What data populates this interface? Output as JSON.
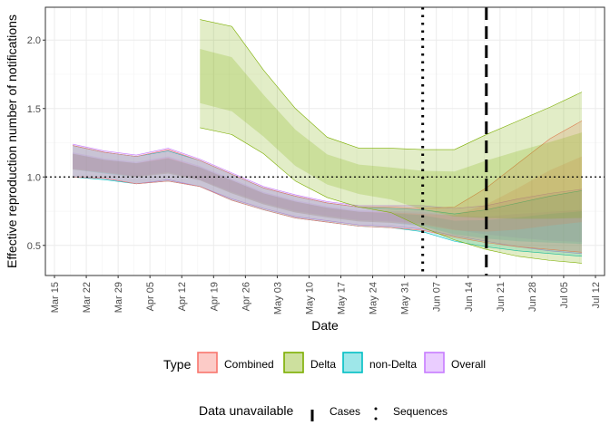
{
  "chart_data": {
    "type": "area",
    "xlabel": "Date",
    "ylabel": "Effective reproduction number of notifications",
    "y_ticks": [
      0.5,
      1.0,
      1.5,
      2.0
    ],
    "y_tick_labels": [
      "0.5",
      "1.0",
      "1.5",
      "2.0"
    ],
    "ylim": [
      0.28,
      2.24
    ],
    "xlim": [
      "2021-03-13",
      "2021-07-14"
    ],
    "x_ticks": [
      "2021-03-15",
      "2021-03-22",
      "2021-03-29",
      "2021-04-05",
      "2021-04-12",
      "2021-04-19",
      "2021-04-26",
      "2021-05-03",
      "2021-05-10",
      "2021-05-17",
      "2021-05-24",
      "2021-05-31",
      "2021-06-07",
      "2021-06-14",
      "2021-06-21",
      "2021-06-28",
      "2021-07-05",
      "2021-07-12"
    ],
    "x_tick_labels": [
      "Mar 15",
      "Mar 22",
      "Mar 29",
      "Apr 05",
      "Apr 12",
      "Apr 19",
      "Apr 26",
      "May 03",
      "May 10",
      "May 17",
      "May 24",
      "May 31",
      "Jun 07",
      "Jun 14",
      "Jun 21",
      "Jun 28",
      "Jul 05",
      "Jul 12"
    ],
    "grid": true,
    "reference_line_y": 1.0,
    "series": [
      {
        "name": "Overall",
        "color": "#C77CFF",
        "x": [
          "2021-03-19",
          "2021-03-26",
          "2021-04-02",
          "2021-04-09",
          "2021-04-16",
          "2021-04-23",
          "2021-04-30",
          "2021-05-07",
          "2021-05-14",
          "2021-05-21",
          "2021-05-28",
          "2021-06-04",
          "2021-06-11",
          "2021-06-18",
          "2021-06-25",
          "2021-07-02",
          "2021-07-09"
        ],
        "upper": [
          1.24,
          1.19,
          1.16,
          1.21,
          1.13,
          1.03,
          0.93,
          0.87,
          0.82,
          0.79,
          0.79,
          0.79,
          0.77,
          0.79,
          0.84,
          0.88,
          0.91
        ],
        "lower": [
          1.0,
          0.99,
          0.95,
          0.98,
          0.93,
          0.84,
          0.77,
          0.71,
          0.68,
          0.65,
          0.64,
          0.62,
          0.57,
          0.53,
          0.49,
          0.46,
          0.44
        ],
        "median": [
          1.12,
          1.08,
          1.06,
          1.09,
          1.03,
          0.94,
          0.85,
          0.79,
          0.75,
          0.72,
          0.71,
          0.7,
          0.66,
          0.63,
          0.62,
          0.61,
          0.61
        ]
      },
      {
        "name": "non-Delta",
        "color": "#00BFC4",
        "x": [
          "2021-03-19",
          "2021-03-26",
          "2021-04-02",
          "2021-04-09",
          "2021-04-16",
          "2021-04-23",
          "2021-04-30",
          "2021-05-07",
          "2021-05-14",
          "2021-05-21",
          "2021-05-28",
          "2021-06-04",
          "2021-06-11",
          "2021-06-18",
          "2021-06-25",
          "2021-07-02",
          "2021-07-09"
        ],
        "upper": [
          1.23,
          1.18,
          1.15,
          1.19,
          1.12,
          1.02,
          0.92,
          0.86,
          0.81,
          0.78,
          0.77,
          0.76,
          0.73,
          0.76,
          0.81,
          0.86,
          0.9
        ],
        "lower": [
          1.0,
          0.98,
          0.95,
          0.97,
          0.93,
          0.83,
          0.76,
          0.7,
          0.67,
          0.64,
          0.63,
          0.6,
          0.53,
          0.49,
          0.46,
          0.44,
          0.42
        ],
        "median": [
          1.11,
          1.07,
          1.05,
          1.08,
          1.02,
          0.93,
          0.84,
          0.78,
          0.74,
          0.71,
          0.7,
          0.68,
          0.63,
          0.61,
          0.6,
          0.6,
          0.6
        ]
      },
      {
        "name": "Combined",
        "color": "#F8766D",
        "x": [
          "2021-03-19",
          "2021-03-26",
          "2021-04-02",
          "2021-04-09",
          "2021-04-16",
          "2021-04-23",
          "2021-04-30",
          "2021-05-07",
          "2021-05-14",
          "2021-05-21",
          "2021-05-28",
          "2021-06-04",
          "2021-06-11",
          "2021-06-18",
          "2021-06-25",
          "2021-07-02",
          "2021-07-09"
        ],
        "upper": [
          1.23,
          1.18,
          1.15,
          1.2,
          1.12,
          1.02,
          0.92,
          0.86,
          0.81,
          0.78,
          0.78,
          0.77,
          0.78,
          0.92,
          1.1,
          1.28,
          1.41
        ],
        "lower": [
          1.0,
          0.99,
          0.95,
          0.97,
          0.93,
          0.83,
          0.76,
          0.7,
          0.67,
          0.64,
          0.63,
          0.61,
          0.56,
          0.52,
          0.49,
          0.47,
          0.45
        ],
        "median": [
          1.11,
          1.07,
          1.05,
          1.08,
          1.02,
          0.93,
          0.84,
          0.78,
          0.74,
          0.71,
          0.7,
          0.69,
          0.66,
          0.68,
          0.74,
          0.82,
          0.89
        ]
      },
      {
        "name": "Delta",
        "color": "#7CAE00",
        "x": [
          "2021-04-16",
          "2021-04-23",
          "2021-04-30",
          "2021-05-07",
          "2021-05-14",
          "2021-05-21",
          "2021-05-28",
          "2021-06-04",
          "2021-06-11",
          "2021-06-18",
          "2021-06-25",
          "2021-07-02",
          "2021-07-09"
        ],
        "upper": [
          2.15,
          2.1,
          1.78,
          1.5,
          1.29,
          1.21,
          1.21,
          1.2,
          1.2,
          1.31,
          1.41,
          1.51,
          1.62
        ],
        "lower": [
          1.36,
          1.31,
          1.17,
          0.97,
          0.85,
          0.78,
          0.74,
          0.63,
          0.54,
          0.47,
          0.42,
          0.39,
          0.37
        ],
        "median": [
          1.72,
          1.65,
          1.42,
          1.19,
          1.04,
          0.97,
          0.93,
          0.89,
          0.88,
          0.93,
          0.97,
          1.0,
          1.03
        ]
      }
    ],
    "vlines": [
      {
        "label": "Cases",
        "x": "2021-06-18",
        "style": "dashed"
      },
      {
        "label": "Sequences",
        "x": "2021-06-04",
        "style": "dotted"
      }
    ],
    "legend": {
      "position": "bottom",
      "type_title": "Type",
      "type_entries": [
        "Combined",
        "Delta",
        "non-Delta",
        "Overall"
      ],
      "data_title": "Data unavailable",
      "data_entries": [
        "Cases",
        "Sequences"
      ]
    }
  }
}
